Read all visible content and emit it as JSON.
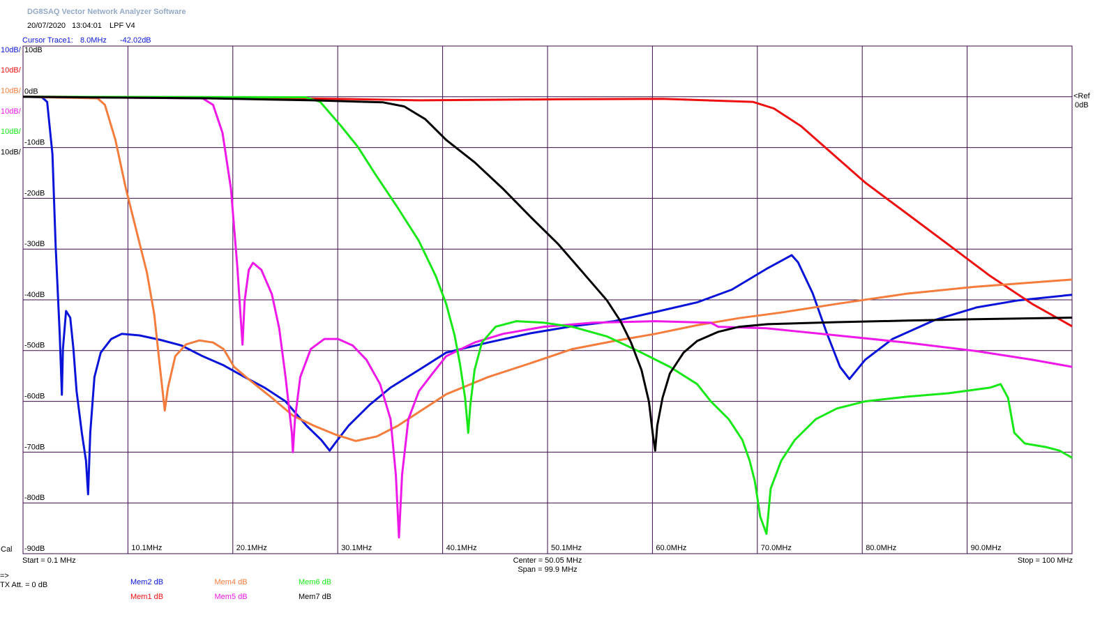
{
  "header": {
    "title": "DG8SAQ Vector Network Analyzer Software",
    "date": "20/07/2020",
    "time": "13:04:01",
    "name": "LPF V4",
    "cursor_label": "Cursor Trace1:",
    "cursor_x": "8.0MHz",
    "cursor_y": "-42.02dB"
  },
  "footer": {
    "cal": "Cal",
    "start": "Start = 0.1 MHz",
    "center": "Center = 50.05 MHz",
    "span": "Span = 99.9 MHz",
    "stop": "Stop = 100 MHz",
    "arrow": "=>",
    "tx_att": "TX Att.  = 0 dB"
  },
  "ref": {
    "label": "<Ref",
    "value": "0dB"
  },
  "chart_data": {
    "type": "line",
    "grid": true,
    "xlim": [
      0.1,
      100
    ],
    "ylim": [
      -90,
      10
    ],
    "xticks": [
      {
        "value": 10.09,
        "label": "10.1MHz"
      },
      {
        "value": 20.08,
        "label": "20.1MHz"
      },
      {
        "value": 30.07,
        "label": "30.1MHz"
      },
      {
        "value": 40.06,
        "label": "40.1MHz"
      },
      {
        "value": 50.05,
        "label": "50.1MHz"
      },
      {
        "value": 60.04,
        "label": "60.0MHz"
      },
      {
        "value": 70.03,
        "label": "70.0MHz"
      },
      {
        "value": 80.02,
        "label": "80.0MHz"
      },
      {
        "value": 90.01,
        "label": "90.0MHz"
      }
    ],
    "yticks": [
      {
        "value": 10,
        "label": "10dB"
      },
      {
        "value": 0,
        "label": "0dB"
      },
      {
        "value": -10,
        "label": "-10dB"
      },
      {
        "value": -20,
        "label": "-20dB"
      },
      {
        "value": -30,
        "label": "-30dB"
      },
      {
        "value": -40,
        "label": "-40dB"
      },
      {
        "value": -50,
        "label": "-50dB"
      },
      {
        "value": -60,
        "label": "-60dB"
      },
      {
        "value": -70,
        "label": "-70dB"
      },
      {
        "value": -80,
        "label": "-80dB"
      },
      {
        "value": -90,
        "label": "-90dB"
      }
    ],
    "series": [
      {
        "name": "Mem2 dB",
        "scale": "10dB/",
        "color": "#0a14d8",
        "x": [
          0.1,
          1.9,
          2.4,
          2.9,
          3.2,
          3.6,
          3.8,
          3.9,
          4.2,
          4.6,
          4.9,
          5.2,
          5.7,
          6.1,
          6.3,
          6.5,
          6.9,
          7.5,
          8.5,
          9.5,
          11.2,
          13.2,
          15.2,
          17.2,
          19.2,
          21.2,
          23.1,
          25.1,
          27.1,
          28.5,
          29.3,
          29.8,
          31.1,
          33.1,
          35.1,
          37.8,
          40.4,
          44.4,
          48.4,
          52.4,
          56.4,
          60.3,
          64.3,
          67.6,
          70.9,
          73.3,
          73.9,
          75.3,
          76.6,
          77.9,
          78.8,
          80.3,
          82.9,
          86.9,
          90.9,
          94.9,
          100.0
        ],
        "values": [
          0,
          -0.1,
          -1.0,
          -11.3,
          -29.1,
          -47.0,
          -58.7,
          -49.7,
          -42.2,
          -43.5,
          -49.7,
          -58.0,
          -66.2,
          -71.7,
          -78.3,
          -66.2,
          -55.2,
          -50.4,
          -47.7,
          -46.7,
          -47.0,
          -47.9,
          -49.0,
          -51.1,
          -52.9,
          -55.2,
          -57.3,
          -60.0,
          -64.8,
          -67.6,
          -69.7,
          -68.3,
          -64.8,
          -60.7,
          -57.3,
          -53.8,
          -50.4,
          -48.4,
          -46.6,
          -45.2,
          -44.2,
          -42.4,
          -40.5,
          -38.0,
          -33.9,
          -31.2,
          -32.6,
          -38.7,
          -46.3,
          -53.2,
          -55.6,
          -51.8,
          -47.7,
          -44.0,
          -41.5,
          -40.1,
          -39.0
        ]
      },
      {
        "name": "Mem1 dB",
        "scale": "10dB/",
        "color": "#ee1010",
        "x": [
          0.1,
          17.8,
          29.8,
          37.8,
          51.1,
          61.0,
          69.6,
          71.6,
          74.2,
          76.9,
          80.3,
          84.2,
          88.2,
          92.2,
          96.2,
          100.0
        ],
        "values": [
          0,
          -0.1,
          -0.4,
          -0.7,
          -0.5,
          -0.4,
          -1.0,
          -2.3,
          -5.8,
          -10.7,
          -16.9,
          -22.9,
          -29.1,
          -35.3,
          -40.8,
          -45.2
        ]
      },
      {
        "name": "Mem4 dB",
        "scale": "10dB/",
        "color": "#f47c3c",
        "x": [
          0.1,
          7.2,
          7.9,
          8.9,
          9.9,
          10.9,
          11.9,
          12.6,
          13.1,
          13.6,
          13.9,
          14.6,
          15.6,
          16.9,
          18.2,
          19.2,
          20.2,
          21.8,
          23.8,
          25.8,
          27.8,
          29.8,
          31.8,
          33.8,
          35.8,
          37.8,
          40.4,
          44.4,
          48.4,
          52.4,
          56.4,
          60.3,
          64.3,
          68.3,
          72.3,
          77.6,
          84.2,
          90.9,
          100.0
        ],
        "values": [
          0,
          -0.3,
          -1.6,
          -8.5,
          -18.1,
          -26.4,
          -34.6,
          -42.9,
          -52.5,
          -61.8,
          -57.3,
          -51.1,
          -48.8,
          -48.0,
          -48.4,
          -49.7,
          -53.2,
          -56.0,
          -59.3,
          -62.8,
          -64.8,
          -66.5,
          -67.8,
          -66.9,
          -64.8,
          -62.1,
          -58.6,
          -55.2,
          -52.5,
          -49.7,
          -48.1,
          -46.7,
          -45.0,
          -43.6,
          -42.5,
          -40.8,
          -38.8,
          -37.4,
          -36.0
        ]
      },
      {
        "name": "Mem5 dB",
        "scale": "10dB/",
        "color": "#ee18e8",
        "x": [
          0.1,
          17.2,
          18.2,
          19.1,
          19.9,
          20.5,
          20.9,
          21.0,
          21.2,
          21.6,
          22.0,
          22.8,
          23.8,
          24.5,
          25.1,
          25.7,
          25.8,
          26.0,
          26.5,
          27.5,
          28.8,
          30.1,
          31.5,
          32.8,
          34.1,
          35.1,
          35.6,
          35.9,
          36.2,
          36.8,
          37.8,
          39.1,
          40.4,
          43.1,
          45.8,
          49.7,
          54.4,
          60.3,
          65.6,
          66.3,
          70.9,
          77.6,
          84.2,
          90.9,
          96.2,
          100.0
        ],
        "values": [
          0,
          -0.3,
          -1.6,
          -7.1,
          -18.1,
          -33.2,
          -45.6,
          -48.8,
          -40.2,
          -34.1,
          -32.7,
          -34.1,
          -38.9,
          -45.6,
          -55.2,
          -66.2,
          -70.0,
          -63.5,
          -55.2,
          -49.7,
          -47.7,
          -47.7,
          -49.0,
          -51.8,
          -56.6,
          -63.5,
          -74.4,
          -86.8,
          -74.4,
          -63.5,
          -58.0,
          -54.5,
          -51.1,
          -48.4,
          -46.7,
          -45.3,
          -44.5,
          -44.2,
          -44.5,
          -45.3,
          -45.6,
          -47.0,
          -48.4,
          -50.1,
          -51.8,
          -53.2
        ]
      },
      {
        "name": "Mem6 dB",
        "scale": "10dB/",
        "color": "#18e818",
        "x": [
          0.1,
          27.0,
          28.4,
          30.4,
          32.0,
          33.7,
          35.7,
          37.8,
          39.4,
          40.4,
          41.2,
          41.7,
          42.2,
          42.5,
          42.7,
          43.1,
          43.8,
          45.1,
          47.1,
          49.7,
          52.4,
          55.7,
          59.0,
          61.7,
          64.3,
          65.6,
          67.3,
          68.6,
          69.3,
          69.8,
          70.3,
          70.9,
          71.3,
          72.3,
          73.6,
          75.6,
          77.6,
          80.3,
          84.2,
          88.2,
          92.2,
          93.2,
          93.9,
          94.5,
          95.5,
          97.5,
          98.8,
          100.0
        ],
        "values": [
          0,
          -0.1,
          -1.0,
          -5.8,
          -9.9,
          -15.4,
          -21.6,
          -28.4,
          -35.3,
          -40.8,
          -47.0,
          -52.5,
          -59.3,
          -66.2,
          -60.7,
          -53.8,
          -48.4,
          -45.3,
          -44.2,
          -44.5,
          -45.3,
          -47.2,
          -50.4,
          -53.2,
          -56.6,
          -60.0,
          -63.5,
          -67.6,
          -71.7,
          -75.8,
          -82.7,
          -86.1,
          -77.2,
          -71.7,
          -67.6,
          -63.5,
          -61.4,
          -60.0,
          -59.1,
          -58.4,
          -57.3,
          -56.6,
          -59.3,
          -66.2,
          -68.3,
          -69.0,
          -69.7,
          -71.1
        ]
      },
      {
        "name": "Mem7 dB",
        "scale": "10dB/",
        "color": "#000000",
        "x": [
          0.1,
          17.8,
          27.8,
          34.4,
          36.4,
          38.4,
          40.4,
          43.1,
          45.8,
          48.4,
          51.1,
          53.7,
          55.7,
          57.0,
          58.0,
          59.0,
          59.7,
          60.1,
          60.3,
          60.5,
          61.0,
          61.7,
          63.0,
          64.3,
          66.3,
          68.3,
          71.0,
          77.6,
          84.2,
          90.9,
          100.0
        ],
        "values": [
          0,
          -0.3,
          -0.7,
          -1.1,
          -1.9,
          -4.4,
          -8.5,
          -12.9,
          -18.1,
          -23.6,
          -29.1,
          -35.3,
          -40.1,
          -44.2,
          -48.4,
          -53.8,
          -60.0,
          -66.9,
          -69.7,
          -64.8,
          -59.3,
          -54.5,
          -50.4,
          -48.1,
          -46.3,
          -45.3,
          -44.8,
          -44.4,
          -44.1,
          -43.8,
          -43.5
        ]
      }
    ]
  }
}
